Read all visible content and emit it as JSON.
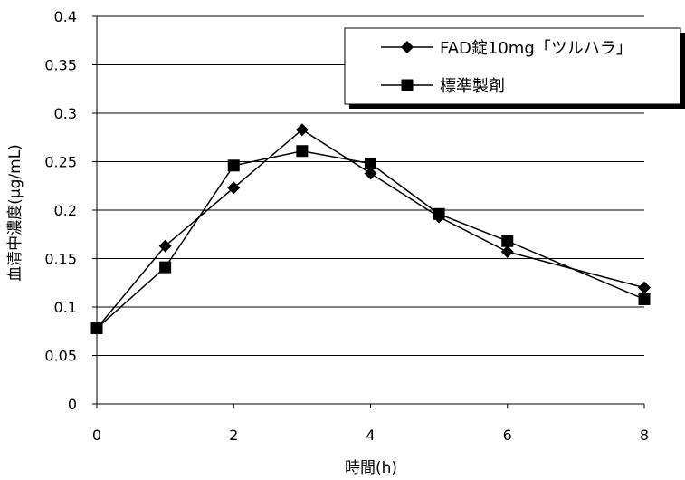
{
  "chart_data": {
    "type": "line",
    "xlabel": "時間(h)",
    "ylabel": "血清中濃度(μg/mL)",
    "xlim": [
      0,
      8
    ],
    "ylim": [
      0,
      0.4
    ],
    "xticks": [
      "0",
      "2",
      "4",
      "6",
      "8"
    ],
    "yticks": [
      "0",
      "0.05",
      "0.1",
      "0.15",
      "0.2",
      "0.25",
      "0.3",
      "0.35",
      "0.4"
    ],
    "grid": "horizontal",
    "legend_position": "top-right",
    "x": [
      0,
      1,
      2,
      3,
      4,
      5,
      6,
      8
    ],
    "series": [
      {
        "name": "FAD錠10mg「ツルハラ」",
        "marker": "diamond",
        "color": "#000000",
        "values": [
          0.078,
          0.163,
          0.223,
          0.283,
          0.238,
          0.193,
          0.157,
          0.12
        ]
      },
      {
        "name": "標準製剤",
        "marker": "square",
        "color": "#000000",
        "values": [
          0.078,
          0.141,
          0.246,
          0.261,
          0.248,
          0.196,
          0.168,
          0.108
        ]
      }
    ]
  }
}
